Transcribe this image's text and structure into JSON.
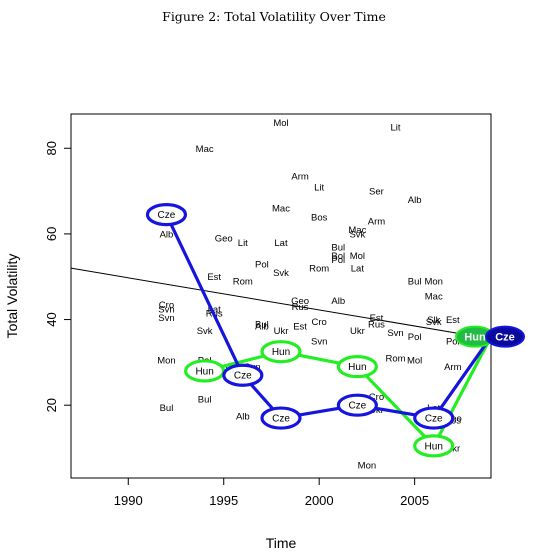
{
  "caption": "Figure 2: Total Volatility Over Time",
  "chart_data": {
    "type": "scatter",
    "xlabel": "Time",
    "ylabel": "Total Volatility",
    "xlim": [
      1987,
      2009
    ],
    "ylim": [
      3,
      88
    ],
    "xticks": [
      1990,
      1995,
      2000,
      2005
    ],
    "yticks": [
      20,
      40,
      60,
      80
    ],
    "grid": false,
    "points": [
      {
        "x": 1992,
        "y": 65,
        "label": "Svk"
      },
      {
        "x": 1992,
        "y": 60,
        "label": "Alb"
      },
      {
        "x": 1992,
        "y": 43.5,
        "label": "Cro"
      },
      {
        "x": 1992,
        "y": 42.5,
        "label": "Svn"
      },
      {
        "x": 1992,
        "y": 40.5,
        "label": "Svn"
      },
      {
        "x": 1992,
        "y": 30.5,
        "label": "Mon"
      },
      {
        "x": 1992,
        "y": 19.5,
        "label": "Bul"
      },
      {
        "x": 1994,
        "y": 80,
        "label": "Mac"
      },
      {
        "x": 1994,
        "y": 30.5,
        "label": "Pol"
      },
      {
        "x": 1994,
        "y": 37.5,
        "label": "Svk"
      },
      {
        "x": 1994,
        "y": 21.5,
        "label": "Bul"
      },
      {
        "x": 1994.5,
        "y": 42.5,
        "label": "Lat"
      },
      {
        "x": 1994.5,
        "y": 41.5,
        "label": "Rus"
      },
      {
        "x": 1994.5,
        "y": 50,
        "label": "Est"
      },
      {
        "x": 1995,
        "y": 59,
        "label": "Geo"
      },
      {
        "x": 1995.5,
        "y": 29,
        "label": "Cro"
      },
      {
        "x": 1996,
        "y": 58,
        "label": "Lit"
      },
      {
        "x": 1996,
        "y": 49,
        "label": "Rom"
      },
      {
        "x": 1996.5,
        "y": 29,
        "label": "Svn"
      },
      {
        "x": 1997,
        "y": 53,
        "label": "Pol"
      },
      {
        "x": 1997,
        "y": 39,
        "label": "Bul"
      },
      {
        "x": 1997,
        "y": 38.5,
        "label": "Alb"
      },
      {
        "x": 1996,
        "y": 17.5,
        "label": "Alb"
      },
      {
        "x": 1998,
        "y": 86,
        "label": "Mol"
      },
      {
        "x": 1998,
        "y": 66,
        "label": "Mac"
      },
      {
        "x": 1998,
        "y": 58,
        "label": "Lat"
      },
      {
        "x": 1998,
        "y": 51,
        "label": "Svk"
      },
      {
        "x": 1998,
        "y": 37.5,
        "label": "Ukr"
      },
      {
        "x": 1999,
        "y": 73.5,
        "label": "Arm"
      },
      {
        "x": 1999,
        "y": 44.5,
        "label": "Geo"
      },
      {
        "x": 1999,
        "y": 43,
        "label": "Rus"
      },
      {
        "x": 1999,
        "y": 38.5,
        "label": "Est"
      },
      {
        "x": 2000,
        "y": 71,
        "label": "Lit"
      },
      {
        "x": 2000,
        "y": 64,
        "label": "Bos"
      },
      {
        "x": 2000,
        "y": 52,
        "label": "Rom"
      },
      {
        "x": 2000,
        "y": 39.5,
        "label": "Cro"
      },
      {
        "x": 2000,
        "y": 35,
        "label": "Svn"
      },
      {
        "x": 2001,
        "y": 57,
        "label": "Bul"
      },
      {
        "x": 2001,
        "y": 55,
        "label": "Bol"
      },
      {
        "x": 2001,
        "y": 54,
        "label": "Pol"
      },
      {
        "x": 2001,
        "y": 44.5,
        "label": "Alb"
      },
      {
        "x": 2002,
        "y": 61,
        "label": "Mac"
      },
      {
        "x": 2002,
        "y": 60,
        "label": "Svk"
      },
      {
        "x": 2002,
        "y": 55,
        "label": "Mol"
      },
      {
        "x": 2002,
        "y": 52,
        "label": "Lat"
      },
      {
        "x": 2002,
        "y": 37.5,
        "label": "Ukr"
      },
      {
        "x": 2003,
        "y": 70,
        "label": "Ser"
      },
      {
        "x": 2003,
        "y": 63,
        "label": "Arm"
      },
      {
        "x": 2003,
        "y": 40.5,
        "label": "Est"
      },
      {
        "x": 2003,
        "y": 39,
        "label": "Rus"
      },
      {
        "x": 2003,
        "y": 22,
        "label": "Cro"
      },
      {
        "x": 2003,
        "y": 19,
        "label": "Ukr"
      },
      {
        "x": 2002.5,
        "y": 6,
        "label": "Mon"
      },
      {
        "x": 2004,
        "y": 85,
        "label": "Lit"
      },
      {
        "x": 2004,
        "y": 31,
        "label": "Rom"
      },
      {
        "x": 2004,
        "y": 37,
        "label": "Svn"
      },
      {
        "x": 2005,
        "y": 68,
        "label": "Alb"
      },
      {
        "x": 2005,
        "y": 49,
        "label": "Bul"
      },
      {
        "x": 2005,
        "y": 36,
        "label": "Pol"
      },
      {
        "x": 2005,
        "y": 30.5,
        "label": "Mol"
      },
      {
        "x": 2006,
        "y": 49,
        "label": "Mon"
      },
      {
        "x": 2006,
        "y": 45.5,
        "label": "Mac"
      },
      {
        "x": 2006,
        "y": 40,
        "label": "Slk"
      },
      {
        "x": 2006,
        "y": 39.5,
        "label": "Svk"
      },
      {
        "x": 2006,
        "y": 19.5,
        "label": "Lat"
      },
      {
        "x": 2006,
        "y": 18.5,
        "label": "Est"
      },
      {
        "x": 2007,
        "y": 40,
        "label": "Est"
      },
      {
        "x": 2007,
        "y": 35,
        "label": "Pol"
      },
      {
        "x": 2007,
        "y": 29,
        "label": "Arm"
      },
      {
        "x": 2007,
        "y": 17,
        "label": "Geo"
      },
      {
        "x": 2007,
        "y": 16.5,
        "label": "Bos"
      },
      {
        "x": 2007,
        "y": 10,
        "label": "Ukr"
      }
    ],
    "trend_line": {
      "x": [
        1987,
        2009
      ],
      "y": [
        52,
        35.5
      ]
    },
    "series": [
      {
        "name": "Cze",
        "color": "#1515dd",
        "fill_color": "#0a0a9e",
        "x": [
          1992,
          1996,
          1998,
          2002,
          2006,
          2009
        ],
        "y": [
          64.5,
          27,
          17,
          20,
          17,
          36
        ],
        "end_label": "Cze"
      },
      {
        "name": "Hun",
        "color": "#22ee22",
        "fill_color": "#22bb44",
        "x": [
          1994,
          1998,
          2002,
          2006,
          2009
        ],
        "y": [
          28,
          32.5,
          29,
          10.5,
          36
        ],
        "end_label": "Hun"
      }
    ]
  }
}
